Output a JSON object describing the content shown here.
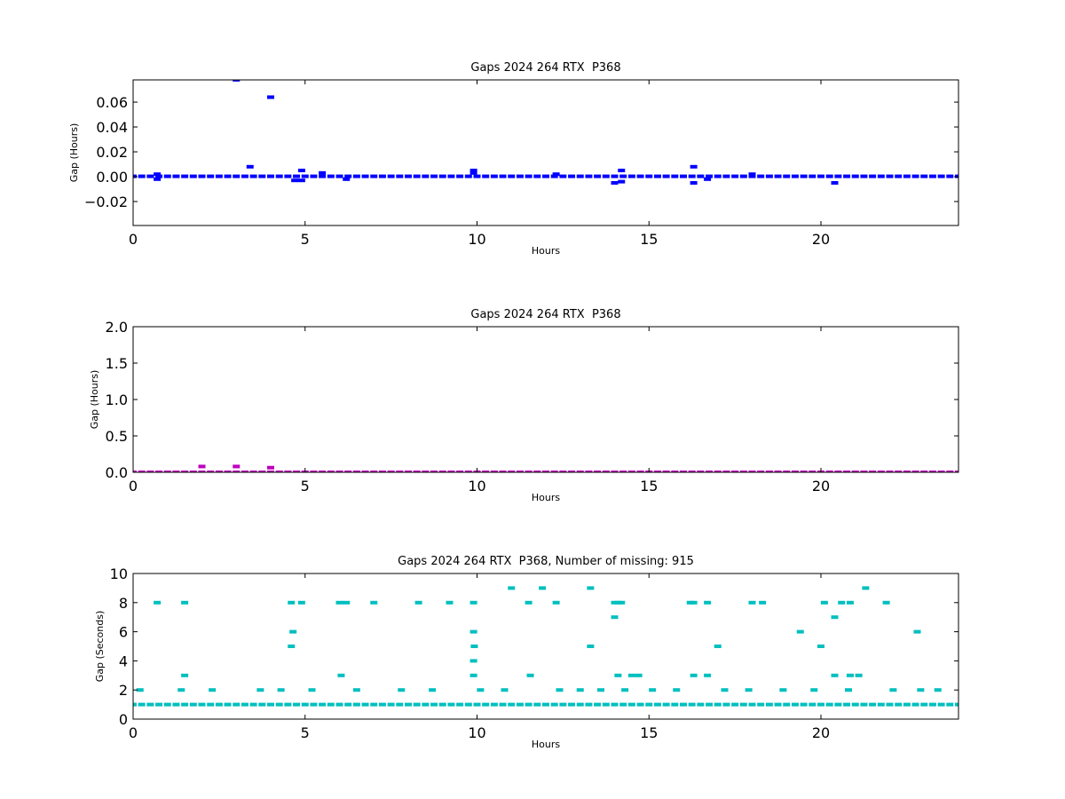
{
  "chart_data": [
    {
      "type": "scatter",
      "title": "Gaps 2024 264 RTX  P368",
      "xlabel": "Hours",
      "ylabel": "Gap (Hours)",
      "color": "#0000ff",
      "xlim": [
        0,
        24
      ],
      "xticks": [
        0,
        5,
        10,
        15,
        20
      ],
      "ylim": [
        -0.0393,
        0.0779
      ],
      "yticks": [
        {
          "value": -0.02,
          "label": "−0.02"
        },
        {
          "value": 0,
          "label": "0.00"
        },
        0.02,
        0.04,
        0.06
      ],
      "x": [
        0,
        0.25,
        0.5,
        0.75,
        1,
        1.25,
        1.5,
        1.75,
        2,
        2.25,
        2.5,
        2.75,
        3,
        3.25,
        3.5,
        3.75,
        4,
        4.25,
        4.5,
        4.75,
        5,
        5.25,
        5.5,
        5.75,
        6,
        6.25,
        6.5,
        6.75,
        7,
        7.25,
        7.5,
        7.75,
        8,
        8.25,
        8.5,
        8.75,
        9,
        9.25,
        9.5,
        9.75,
        10,
        10.25,
        10.5,
        10.75,
        11,
        11.25,
        11.5,
        11.75,
        12,
        12.25,
        12.5,
        12.75,
        13,
        13.25,
        13.5,
        13.75,
        14,
        14.25,
        14.5,
        14.75,
        15,
        15.25,
        15.5,
        15.75,
        16,
        16.25,
        16.5,
        16.75,
        17,
        17.25,
        17.5,
        17.75,
        18,
        18.25,
        18.5,
        18.75,
        19,
        19.25,
        19.5,
        19.75,
        20,
        20.25,
        20.5,
        20.75,
        21,
        21.25,
        21.5,
        21.75,
        22,
        22.25,
        22.5,
        22.75,
        23,
        23.25,
        23.5,
        23.75,
        24,
        3.0,
        4.0,
        3.4,
        0.7,
        0.7,
        4.7,
        4.9,
        4.9,
        5.5,
        6.2,
        9.9,
        9.9,
        14.0,
        14.2,
        14.2,
        16.3,
        16.3,
        16.7,
        20.4,
        18.0,
        12.3
      ],
      "values": [
        0.0003,
        0.0003,
        0.0003,
        0.0003,
        0.0003,
        0.0003,
        0.0003,
        0.0003,
        0.0003,
        0.0003,
        0.0003,
        0.0003,
        0.0003,
        0.0003,
        0.0003,
        0.0003,
        0.0003,
        0.0003,
        0.0003,
        0.0003,
        0.0003,
        0.0003,
        0.0003,
        0.0003,
        0.0003,
        0.0003,
        0.0003,
        0.0003,
        0.0003,
        0.0003,
        0.0003,
        0.0003,
        0.0003,
        0.0003,
        0.0003,
        0.0003,
        0.0003,
        0.0003,
        0.0003,
        0.0003,
        0.0003,
        0.0003,
        0.0003,
        0.0003,
        0.0003,
        0.0003,
        0.0003,
        0.0003,
        0.0003,
        0.0003,
        0.0003,
        0.0003,
        0.0003,
        0.0003,
        0.0003,
        0.0003,
        0.0003,
        0.0003,
        0.0003,
        0.0003,
        0.0003,
        0.0003,
        0.0003,
        0.0003,
        0.0003,
        0.0003,
        0.0003,
        0.0003,
        0.0003,
        0.0003,
        0.0003,
        0.0003,
        0.0003,
        0.0003,
        0.0003,
        0.0003,
        0.0003,
        0.0003,
        0.0003,
        0.0003,
        0.0003,
        0.0003,
        0.0003,
        0.0003,
        0.0003,
        0.0003,
        0.0003,
        0.0003,
        0.0003,
        0.0003,
        0.0003,
        0.0003,
        0.0003,
        0.0003,
        0.0003,
        0.0003,
        0.0003,
        0.078,
        0.064,
        0.008,
        0.002,
        -0.002,
        -0.003,
        0.005,
        -0.003,
        0.003,
        -0.002,
        0.005,
        0.003,
        -0.005,
        0.005,
        -0.004,
        0.008,
        -0.005,
        -0.002,
        -0.005,
        0.002,
        0.002
      ]
    },
    {
      "type": "scatter",
      "title": "Gaps 2024 264 RTX  P368",
      "xlabel": "Hours",
      "ylabel": "Gap (Hours)",
      "color": "#bf00bf",
      "xlim": [
        0,
        24
      ],
      "xticks": [
        0,
        5,
        10,
        15,
        20
      ],
      "ylim": [
        0,
        2
      ],
      "yticks": [
        {
          "value": 0,
          "label": "0.0"
        },
        0.5,
        {
          "value": 1,
          "label": "1.0"
        },
        1.5,
        {
          "value": 2,
          "label": "2.0"
        }
      ],
      "x": [
        0,
        0.25,
        0.5,
        0.75,
        1,
        1.25,
        1.5,
        1.75,
        2,
        2.25,
        2.5,
        2.75,
        3,
        3.25,
        3.5,
        3.75,
        4,
        4.25,
        4.5,
        4.75,
        5,
        5.25,
        5.5,
        5.75,
        6,
        6.25,
        6.5,
        6.75,
        7,
        7.25,
        7.5,
        7.75,
        8,
        8.25,
        8.5,
        8.75,
        9,
        9.25,
        9.5,
        9.75,
        10,
        10.25,
        10.5,
        10.75,
        11,
        11.25,
        11.5,
        11.75,
        12,
        12.25,
        12.5,
        12.75,
        13,
        13.25,
        13.5,
        13.75,
        14,
        14.25,
        14.5,
        14.75,
        15,
        15.25,
        15.5,
        15.75,
        16,
        16.25,
        16.5,
        16.75,
        17,
        17.25,
        17.5,
        17.75,
        18,
        18.25,
        18.5,
        18.75,
        19,
        19.25,
        19.5,
        19.75,
        20,
        20.25,
        20.5,
        20.75,
        21,
        21.25,
        21.5,
        21.75,
        22,
        22.25,
        22.5,
        22.75,
        23,
        23.25,
        23.5,
        23.75,
        24,
        2.0,
        3.0,
        4.0
      ],
      "values": [
        0.0003,
        0.0003,
        0.0003,
        0.0003,
        0.0003,
        0.0003,
        0.0003,
        0.0003,
        0.0003,
        0.0003,
        0.0003,
        0.0003,
        0.0003,
        0.0003,
        0.0003,
        0.0003,
        0.0003,
        0.0003,
        0.0003,
        0.0003,
        0.0003,
        0.0003,
        0.0003,
        0.0003,
        0.0003,
        0.0003,
        0.0003,
        0.0003,
        0.0003,
        0.0003,
        0.0003,
        0.0003,
        0.0003,
        0.0003,
        0.0003,
        0.0003,
        0.0003,
        0.0003,
        0.0003,
        0.0003,
        0.0003,
        0.0003,
        0.0003,
        0.0003,
        0.0003,
        0.0003,
        0.0003,
        0.0003,
        0.0003,
        0.0003,
        0.0003,
        0.0003,
        0.0003,
        0.0003,
        0.0003,
        0.0003,
        0.0003,
        0.0003,
        0.0003,
        0.0003,
        0.0003,
        0.0003,
        0.0003,
        0.0003,
        0.0003,
        0.0003,
        0.0003,
        0.0003,
        0.0003,
        0.0003,
        0.0003,
        0.0003,
        0.0003,
        0.0003,
        0.0003,
        0.0003,
        0.0003,
        0.0003,
        0.0003,
        0.0003,
        0.0003,
        0.0003,
        0.0003,
        0.0003,
        0.0003,
        0.0003,
        0.0003,
        0.0003,
        0.0003,
        0.0003,
        0.0003,
        0.0003,
        0.0003,
        0.0003,
        0.0003,
        0.0003,
        0.0003,
        0.08,
        0.08,
        0.064
      ]
    },
    {
      "type": "scatter",
      "title": "Gaps 2024 264 RTX  P368, Number of missing: 915",
      "xlabel": "Hours",
      "ylabel": "Gap (Seconds)",
      "color": "#00bfbf",
      "xlim": [
        0,
        24
      ],
      "xticks": [
        0,
        5,
        10,
        15,
        20
      ],
      "ylim": [
        0,
        10
      ],
      "yticks": [
        0,
        2,
        4,
        6,
        8,
        10
      ],
      "x": [
        0,
        0.25,
        0.5,
        0.75,
        1,
        1.25,
        1.5,
        1.75,
        2,
        2.25,
        2.5,
        2.75,
        3,
        3.25,
        3.5,
        3.75,
        4,
        4.25,
        4.5,
        4.75,
        5,
        5.25,
        5.5,
        5.75,
        6,
        6.25,
        6.5,
        6.75,
        7,
        7.25,
        7.5,
        7.75,
        8,
        8.25,
        8.5,
        8.75,
        9,
        9.25,
        9.5,
        9.75,
        10,
        10.25,
        10.5,
        10.75,
        11,
        11.25,
        11.5,
        11.75,
        12,
        12.25,
        12.5,
        12.75,
        13,
        13.25,
        13.5,
        13.75,
        14,
        14.25,
        14.5,
        14.75,
        15,
        15.25,
        15.5,
        15.75,
        16,
        16.25,
        16.5,
        16.75,
        17,
        17.25,
        17.5,
        17.75,
        18,
        18.25,
        18.5,
        18.75,
        19,
        19.25,
        19.5,
        19.75,
        20,
        20.25,
        20.5,
        20.75,
        21,
        21.25,
        21.5,
        21.75,
        22,
        22.25,
        22.5,
        22.75,
        23,
        23.25,
        23.5,
        23.75,
        24,
        0.7,
        1.5,
        1.5,
        4.6,
        4.6,
        4.65,
        4.9,
        6.0,
        6.05,
        6.2,
        7.0,
        8.3,
        9.2,
        9.9,
        9.9,
        9.92,
        9.9,
        9.9,
        11.0,
        11.5,
        11.55,
        11.9,
        12.3,
        13.3,
        13.3,
        14.0,
        14.0,
        14.1,
        14.2,
        14.1,
        14.5,
        14.7,
        16.2,
        16.3,
        16.3,
        16.7,
        16.7,
        17.0,
        18.0,
        18.3,
        19.4,
        20.0,
        20.1,
        20.4,
        20.4,
        20.6,
        20.85,
        20.85,
        21.1,
        21.3,
        21.9,
        22.8,
        0.2,
        1.4,
        2.3,
        3.7,
        4.3,
        5.2,
        6.5,
        7.8,
        8.7,
        10.1,
        10.8,
        12.4,
        13.0,
        13.6,
        14.3,
        15.1,
        15.8,
        17.2,
        17.9,
        18.9,
        19.8,
        20.8,
        22.1,
        22.9,
        23.4
      ],
      "values": [
        1,
        1,
        1,
        1,
        1,
        1,
        1,
        1,
        1,
        1,
        1,
        1,
        1,
        1,
        1,
        1,
        1,
        1,
        1,
        1,
        1,
        1,
        1,
        1,
        1,
        1,
        1,
        1,
        1,
        1,
        1,
        1,
        1,
        1,
        1,
        1,
        1,
        1,
        1,
        1,
        1,
        1,
        1,
        1,
        1,
        1,
        1,
        1,
        1,
        1,
        1,
        1,
        1,
        1,
        1,
        1,
        1,
        1,
        1,
        1,
        1,
        1,
        1,
        1,
        1,
        1,
        1,
        1,
        1,
        1,
        1,
        1,
        1,
        1,
        1,
        1,
        1,
        1,
        1,
        1,
        1,
        1,
        1,
        1,
        1,
        1,
        1,
        1,
        1,
        1,
        1,
        1,
        1,
        1,
        1,
        1,
        1,
        8,
        8,
        3,
        8,
        5,
        6,
        8,
        8,
        3,
        8,
        8,
        8,
        8,
        8,
        6,
        5,
        4,
        3,
        9,
        8,
        3,
        9,
        8,
        9,
        5,
        8,
        7,
        8,
        8,
        3,
        3,
        3,
        8,
        8,
        3,
        8,
        3,
        5,
        8,
        8,
        6,
        5,
        8,
        7,
        3,
        8,
        8,
        3,
        3,
        9,
        8,
        6,
        2,
        2,
        2,
        2,
        2,
        2,
        2,
        2,
        2,
        2,
        2,
        2,
        2,
        2,
        2,
        2,
        2,
        2,
        2,
        2,
        2,
        2,
        2,
        2,
        2
      ]
    }
  ]
}
